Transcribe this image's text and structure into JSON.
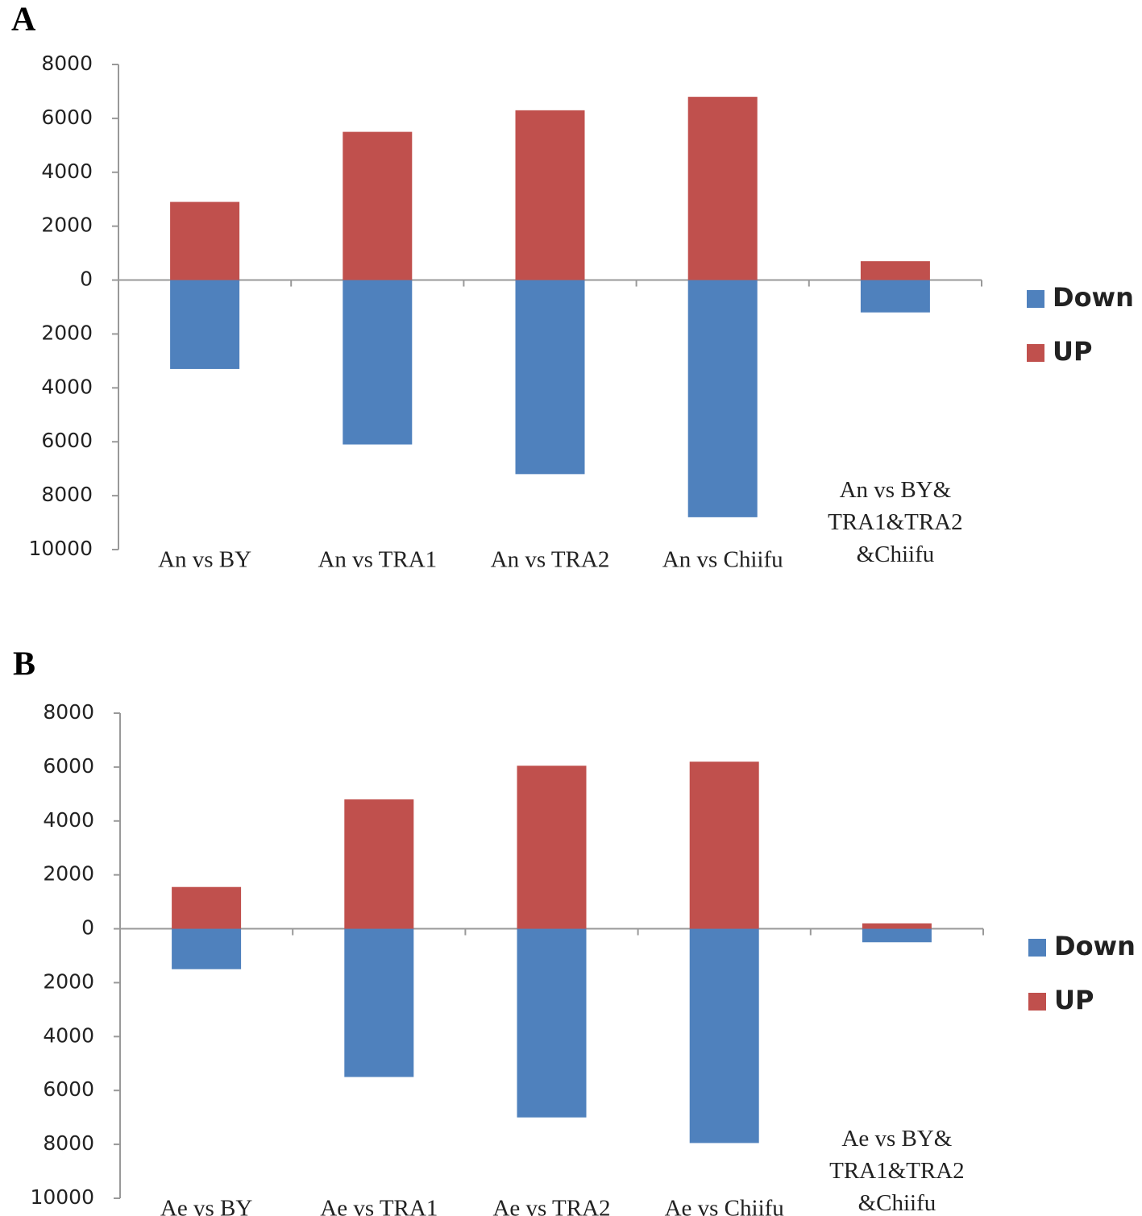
{
  "chart_data": [
    {
      "type": "bar",
      "label": "A",
      "categories": [
        "An vs BY",
        "An vs TRA1",
        "An vs TRA2",
        "An vs Chiifu",
        "An vs BY&\nTRA1&TRA2\n&Chiifu"
      ],
      "series": [
        {
          "name": "Down",
          "color": "#4f81bd",
          "values": [
            -3300,
            -6100,
            -7200,
            -8800,
            -1200
          ]
        },
        {
          "name": "UP",
          "color": "#c0504d",
          "values": [
            2900,
            5500,
            6300,
            6800,
            700
          ]
        }
      ],
      "ylim": [
        -10000,
        8000
      ],
      "yticks": [
        8000,
        6000,
        4000,
        2000,
        0,
        {
          "value": -2000,
          "label": "2000"
        },
        {
          "value": -4000,
          "label": "4000"
        },
        {
          "value": -6000,
          "label": "6000"
        },
        {
          "value": -8000,
          "label": "8000"
        },
        {
          "value": -10000,
          "label": "10000"
        }
      ],
      "legend": "right"
    },
    {
      "type": "bar",
      "label": "B",
      "categories": [
        "Ae vs BY",
        "Ae vs TRA1",
        "Ae vs TRA2",
        "Ae vs Chiifu",
        "Ae vs BY&\nTRA1&TRA2\n&Chiifu"
      ],
      "series": [
        {
          "name": "Down",
          "color": "#4f81bd",
          "values": [
            -1500,
            -5500,
            -7000,
            -7950,
            -500
          ]
        },
        {
          "name": "UP",
          "color": "#c0504d",
          "values": [
            1550,
            4800,
            6050,
            6200,
            200
          ]
        }
      ],
      "ylim": [
        -10000,
        8000
      ],
      "yticks": [
        8000,
        6000,
        4000,
        2000,
        0,
        {
          "value": -2000,
          "label": "2000"
        },
        {
          "value": -4000,
          "label": "4000"
        },
        {
          "value": -6000,
          "label": "6000"
        },
        {
          "value": -8000,
          "label": "8000"
        },
        {
          "value": -10000,
          "label": "10000"
        }
      ],
      "legend": "right"
    }
  ]
}
